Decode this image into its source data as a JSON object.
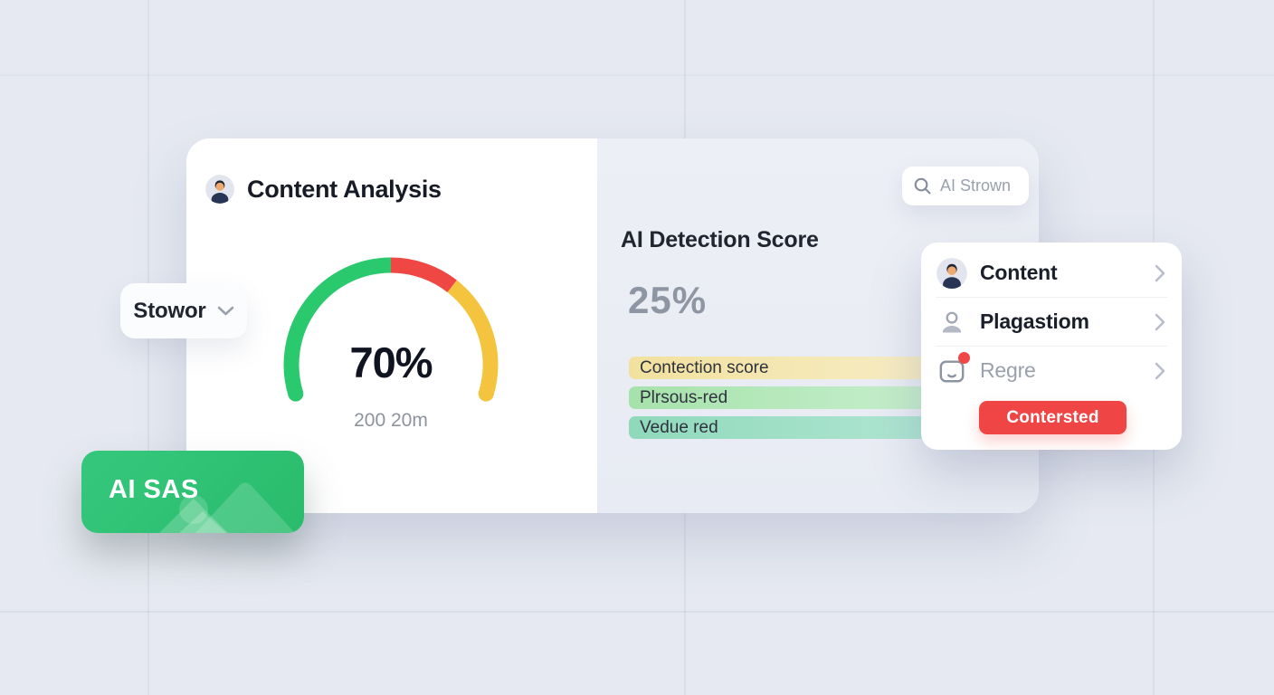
{
  "main_card": {
    "title": "Content Analysis",
    "gauge": {
      "value": "70%",
      "caption": "200 20m",
      "segments": [
        {
          "name": "green",
          "color": "#2bc96e",
          "from": 197,
          "to": 90
        },
        {
          "name": "red",
          "color": "#ee4744",
          "from": 90,
          "to": 52
        },
        {
          "name": "yellow",
          "color": "#f5c43f",
          "from": 52,
          "to": -17
        }
      ]
    },
    "detection": {
      "heading": "AI Detection Score",
      "score": "25%",
      "bars": [
        {
          "label": "Contection score",
          "color_from": "#f2e19e",
          "color_to": "#f8efcd"
        },
        {
          "label": "Plrsous-red",
          "color_from": "#a6e2ab",
          "color_to": "#cdf1d3"
        },
        {
          "label": "Vedue red",
          "color_from": "#8fd9bb",
          "color_to": "#b7e8d7"
        }
      ]
    }
  },
  "search": {
    "placeholder": "AI Strown"
  },
  "filter_chip": {
    "label": "Stowor"
  },
  "badge": {
    "label": "AI SAS",
    "color_from": "#35c77c",
    "color_to": "#2abc6c"
  },
  "menu": {
    "items": [
      {
        "label": "Content",
        "icon": "user-avatar",
        "muted": false,
        "has_notification": false
      },
      {
        "label": "Plagastiom",
        "icon": "person-outline",
        "muted": false,
        "has_notification": false
      },
      {
        "label": "Regre",
        "icon": "inbox",
        "muted": true,
        "has_notification": true
      }
    ],
    "notification_color": "#ee4746",
    "button_label": "Contersted",
    "button_color": "#ef4645"
  }
}
